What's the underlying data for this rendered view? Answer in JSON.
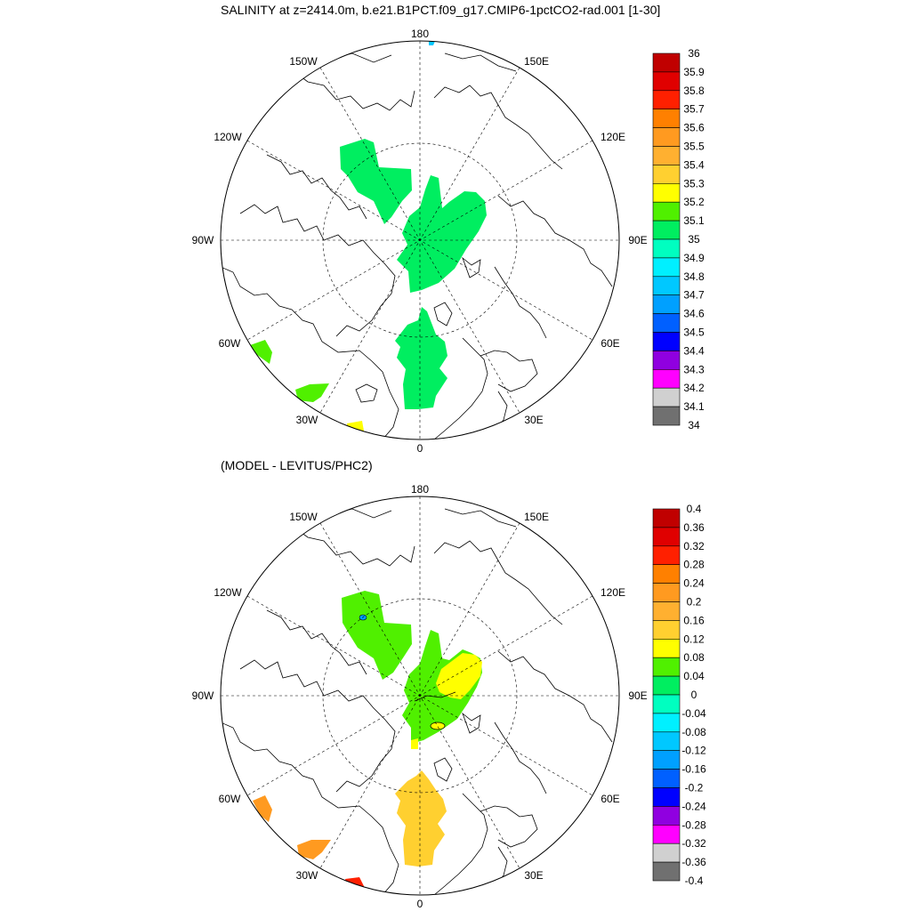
{
  "titles": {
    "top": "SALINITY at z=2414.0m, b.e21.B1PCT.f09_g17.CMIP6-1pctCO2-rad.001 [1-30]",
    "bottom": "(MODEL - LEVITUS/PHC2)"
  },
  "longitude_labels": [
    "180",
    "150E",
    "120E",
    "90E",
    "60E",
    "30E",
    "0",
    "30W",
    "60W",
    "90W",
    "120W",
    "150W"
  ],
  "colorbars": [
    {
      "levels": [
        "36",
        "35.9",
        "35.8",
        "35.7",
        "35.6",
        "35.5",
        "35.4",
        "35.3",
        "35.2",
        "35.1",
        "35",
        "34.9",
        "34.8",
        "34.7",
        "34.6",
        "34.5",
        "34.4",
        "34.3",
        "34.2",
        "34.1",
        "34"
      ],
      "colors": [
        "#c00000",
        "#e00000",
        "#ff2000",
        "#ff8000",
        "#ff9a20",
        "#ffb030",
        "#ffd030",
        "#ffff00",
        "#50f000",
        "#00ee60",
        "#00ffc0",
        "#00f0ff",
        "#00c8ff",
        "#00a0ff",
        "#0060ff",
        "#0000ff",
        "#9000e0",
        "#ff00ff",
        "#d0d0d0",
        "#707070"
      ]
    },
    {
      "levels": [
        "0.4",
        "0.36",
        "0.32",
        "0.28",
        "0.24",
        "0.2",
        "0.16",
        "0.12",
        "0.08",
        "0.04",
        "0",
        "-0.04",
        "-0.08",
        "-0.12",
        "-0.16",
        "-0.2",
        "-0.24",
        "-0.28",
        "-0.32",
        "-0.36",
        "-0.4"
      ],
      "colors": [
        "#c00000",
        "#e00000",
        "#ff2000",
        "#ff8000",
        "#ff9a20",
        "#ffb030",
        "#ffd030",
        "#ffff00",
        "#50f000",
        "#00ee60",
        "#00ffc0",
        "#00f0ff",
        "#00c8ff",
        "#00a0ff",
        "#0060ff",
        "#0000ff",
        "#9000e0",
        "#ff00ff",
        "#d0d0d0",
        "#707070"
      ]
    }
  ],
  "fields": {
    "top_color_green": "#00ee60",
    "top_color_lime": "#50f000",
    "top_color_yellow": "#ffff00",
    "bottom_color_lime": "#50f000",
    "bottom_color_yellow": "#ffff00",
    "bottom_color_gold": "#ffd030",
    "bottom_color_orange": "#ff9a20"
  }
}
